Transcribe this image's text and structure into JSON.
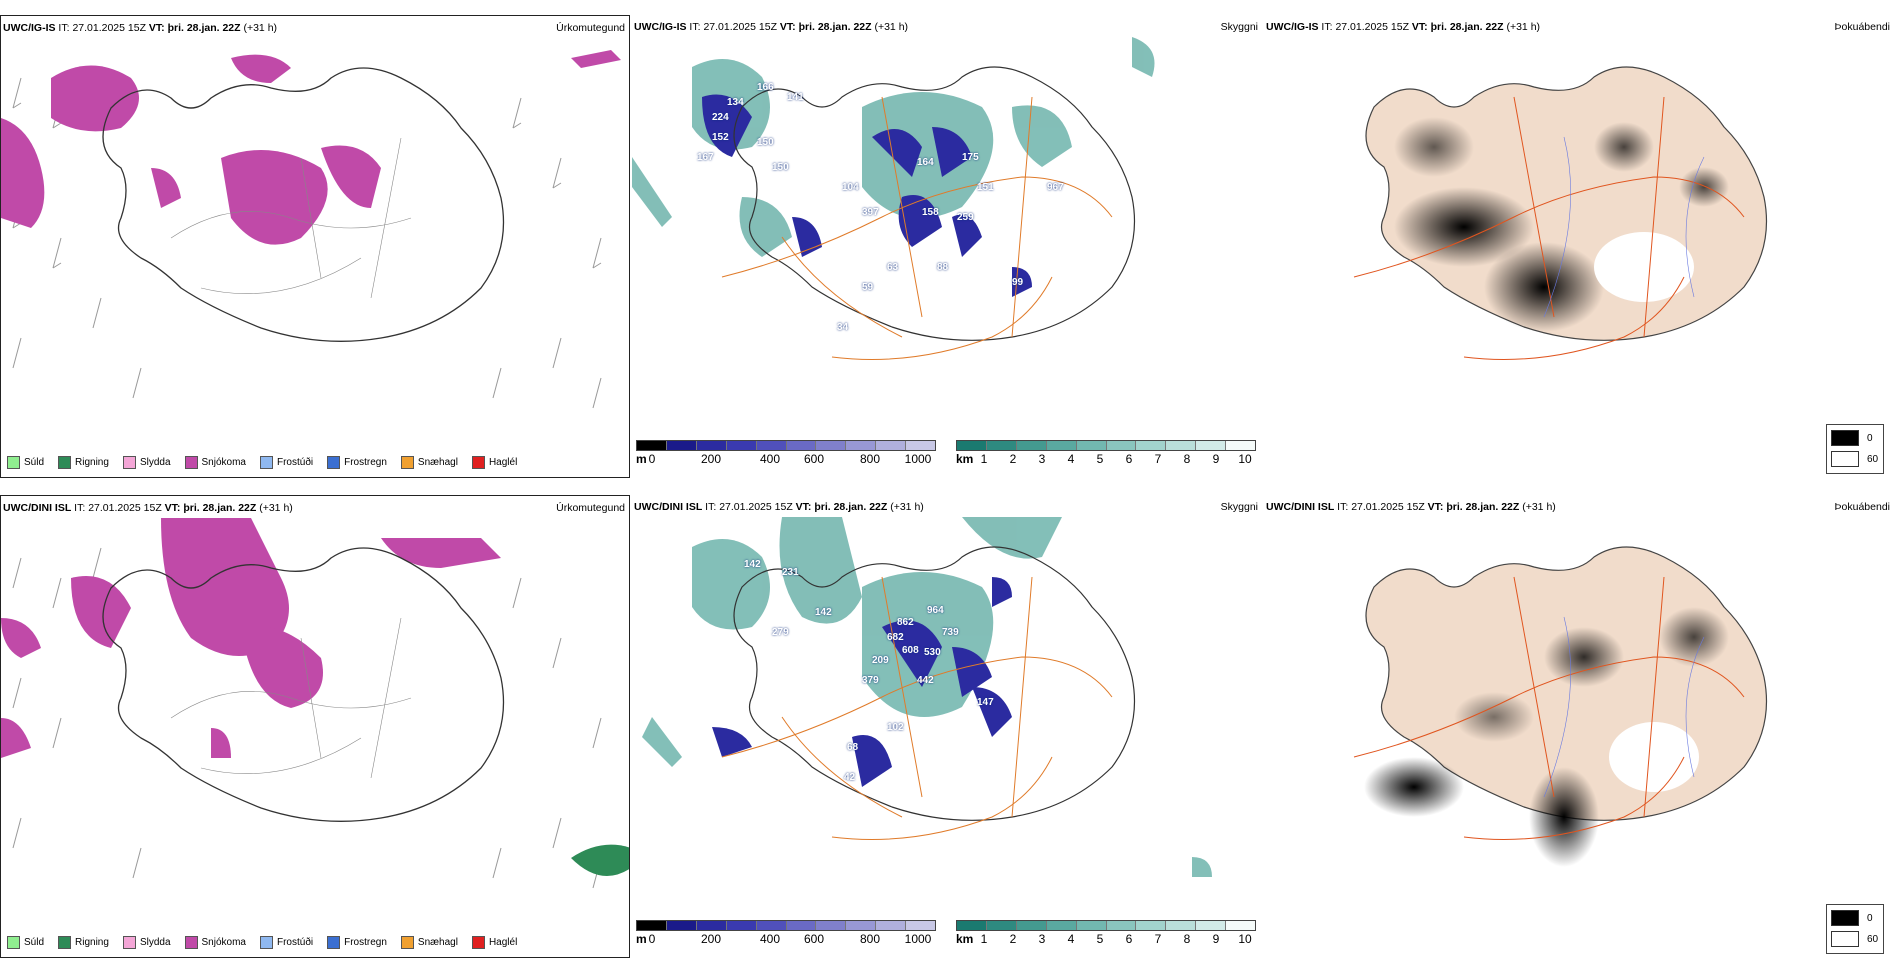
{
  "rows": [
    {
      "model": "UWC/IG-IS",
      "it_label": "IT:",
      "it_value": "27.01.2025 15Z",
      "vt_label": "VT:",
      "vt_value": "þri. 28.jan. 22Z",
      "lead": "(+31 h)",
      "panels": {
        "precip_title": "Úrkomutegund",
        "visibility_title": "Skyggni",
        "fog_title": "Þokuábendi"
      },
      "cloud_labels": [
        "166",
        "141",
        "134",
        "224",
        "152",
        "150",
        "167",
        "150",
        "104",
        "164",
        "175",
        "151",
        "397",
        "158",
        "259",
        "967",
        "63",
        "88",
        "59",
        "99",
        "34"
      ]
    },
    {
      "model": "UWC/DINI ISL",
      "it_label": "IT:",
      "it_value": "27.01.2025 15Z",
      "vt_label": "VT:",
      "vt_value": "þri. 28.jan. 22Z",
      "lead": "(+31 h)",
      "panels": {
        "precip_title": "Úrkomutegund",
        "visibility_title": "Skyggni",
        "fog_title": "Þokuábendi"
      },
      "cloud_labels": [
        "142",
        "231",
        "142",
        "279",
        "862",
        "964",
        "739",
        "682",
        "608",
        "530",
        "209",
        "379",
        "442",
        "147",
        "102",
        "68",
        "42"
      ]
    }
  ],
  "precip_legend": [
    {
      "label": "Súld",
      "color": "#90ee90"
    },
    {
      "label": "Rigning",
      "color": "#2e8b57"
    },
    {
      "label": "Slydda",
      "color": "#f4a6d7"
    },
    {
      "label": "Snjókoma",
      "color": "#c04aa8"
    },
    {
      "label": "Frostúði",
      "color": "#8fb8f0"
    },
    {
      "label": "Frostregn",
      "color": "#3b6fd1"
    },
    {
      "label": "Snæhagl",
      "color": "#f0a030"
    },
    {
      "label": "Haglél",
      "color": "#e02020"
    }
  ],
  "cloud_scale": {
    "unit": "m",
    "ticks": [
      "0",
      "200",
      "400",
      "600",
      "800",
      "1000"
    ],
    "colors": [
      "#000000",
      "#1a1a8a",
      "#2b2ba0",
      "#3a3ab0",
      "#5050bb",
      "#6a6ac5",
      "#8080cc",
      "#9898d5",
      "#b0b0dd",
      "#c8c8e6"
    ]
  },
  "vis_scale": {
    "unit": "km",
    "ticks": [
      "1",
      "2",
      "3",
      "4",
      "5",
      "6",
      "7",
      "8",
      "9",
      "10"
    ],
    "colors": [
      "#1a7a70",
      "#2e8a80",
      "#449a90",
      "#5aa9a0",
      "#72b8b0",
      "#8ac5be",
      "#a2d3cd",
      "#badfda",
      "#d2ebe8",
      "#f5fbfa"
    ]
  },
  "fog_legend": [
    {
      "label": "0",
      "color": "#000000"
    },
    {
      "label": "60",
      "color": "#ffffff"
    }
  ]
}
